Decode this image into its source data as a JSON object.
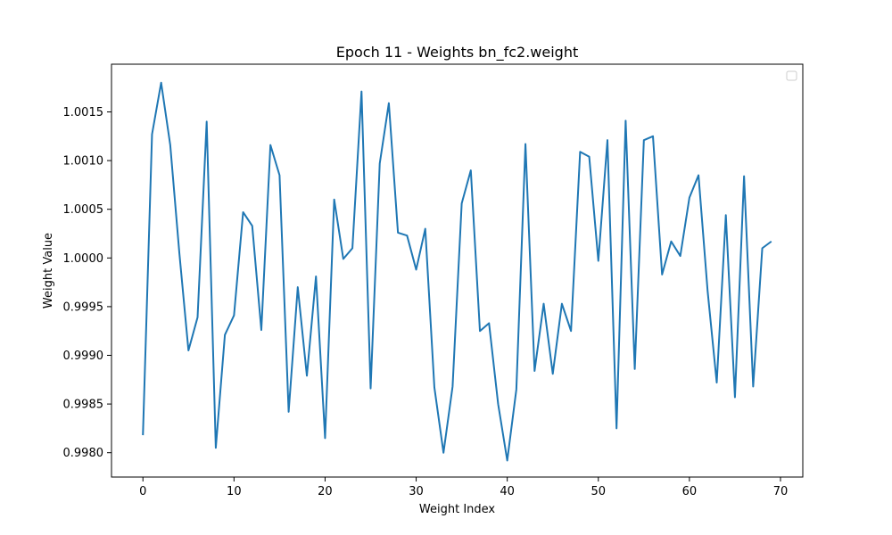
{
  "chart_data": {
    "type": "line",
    "title": "Epoch 11 - Weights bn_fc2.weight",
    "xlabel": "Weight Index",
    "ylabel": "Weight Value",
    "xlim": [
      -3.45,
      72.45
    ],
    "ylim": [
      0.99775,
      1.00199
    ],
    "xticks": [
      0,
      10,
      20,
      30,
      40,
      50,
      60,
      70
    ],
    "yticks": [
      0.998,
      0.9985,
      0.999,
      0.9995,
      1.0,
      1.0005,
      1.001,
      1.0015
    ],
    "ytick_labels": [
      "0.9980",
      "0.9985",
      "0.9990",
      "0.9995",
      "1.0000",
      "1.0005",
      "1.0010",
      "1.0015"
    ],
    "legend": "top-right",
    "grid": false,
    "series": [
      {
        "color": "#1f77b4",
        "values": [
          0.99818,
          1.00127,
          1.0018,
          1.00116,
          1.00005,
          0.99905,
          0.99939,
          1.0014,
          0.99805,
          0.99921,
          0.99941,
          1.00047,
          1.00033,
          0.99926,
          1.00116,
          1.00085,
          0.99842,
          0.9997,
          0.99879,
          0.99981,
          0.99815,
          1.0006,
          0.99999,
          1.0001,
          1.00171,
          0.99866,
          1.00097,
          1.00159,
          1.00026,
          1.00023,
          0.99988,
          1.0003,
          0.99867,
          0.998,
          0.99868,
          1.00056,
          1.0009,
          0.99925,
          0.99933,
          0.9985,
          0.99792,
          0.99865,
          1.00117,
          0.99884,
          0.99953,
          0.99881,
          0.99953,
          0.99925,
          1.00109,
          1.00104,
          0.99997,
          1.00121,
          0.99825,
          1.00141,
          0.99886,
          1.00121,
          1.00125,
          0.99983,
          1.00017,
          1.00002,
          1.00062,
          1.00085,
          0.99966,
          0.99872,
          1.00044,
          0.99857,
          1.00084,
          0.99868,
          1.0001,
          1.00017
        ]
      }
    ]
  }
}
